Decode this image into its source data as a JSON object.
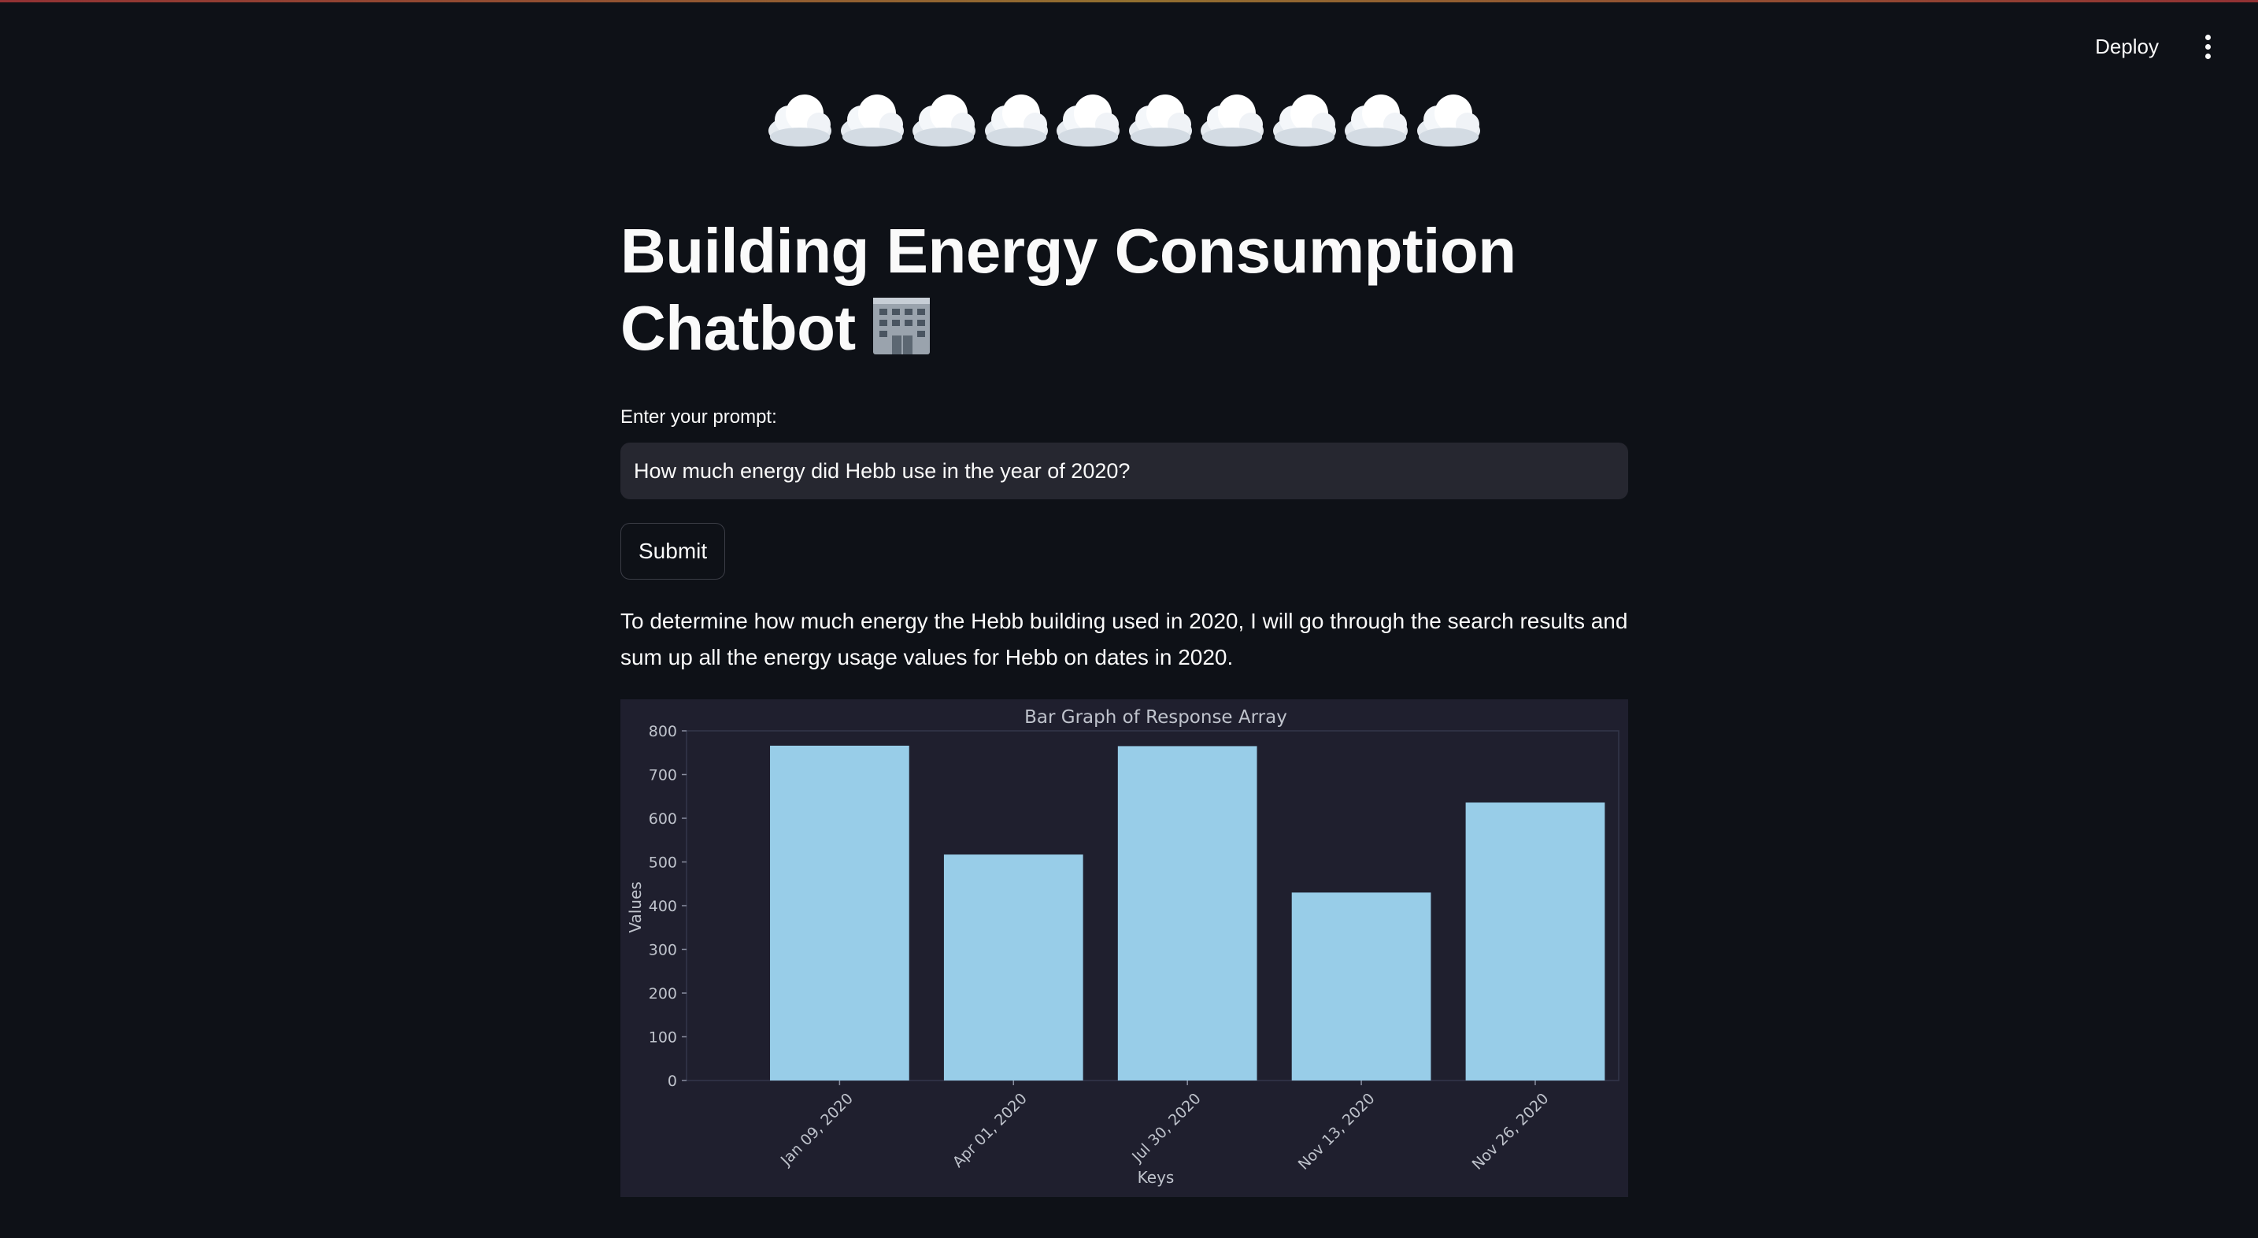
{
  "toolbar": {
    "deploy_label": "Deploy"
  },
  "decorations": {
    "cloud_count": 10,
    "cloud_icon": "cloud-icon",
    "title_icon": "office-building-icon"
  },
  "header": {
    "title_line1": "Building Energy Consumption",
    "title_line2": "Chatbot"
  },
  "prompt": {
    "label": "Enter your prompt:",
    "value": "How much energy did Hebb use in the year of 2020?",
    "submit_label": "Submit"
  },
  "response": {
    "text": "To determine how much energy the Hebb building used in 2020, I will go through the search results and sum up all the energy usage values for Hebb on dates in 2020."
  },
  "colors": {
    "bar": "#98cde8",
    "background": "#0e1117",
    "chart_bg": "#1f1f2e"
  },
  "chart_data": {
    "type": "bar",
    "title": "Bar Graph of Response Array",
    "xlabel": "Keys",
    "ylabel": "Values",
    "categories": [
      "Jan 09, 2020",
      "Apr 01, 2020",
      "Jul 30, 2020",
      "Nov 13, 2020",
      "Nov 26, 2020"
    ],
    "values": [
      766,
      517,
      765,
      430,
      636
    ],
    "ylim": [
      0,
      800
    ],
    "yticks": [
      0,
      100,
      200,
      300,
      400,
      500,
      600,
      700,
      800
    ],
    "grid": false,
    "legend": "none"
  }
}
